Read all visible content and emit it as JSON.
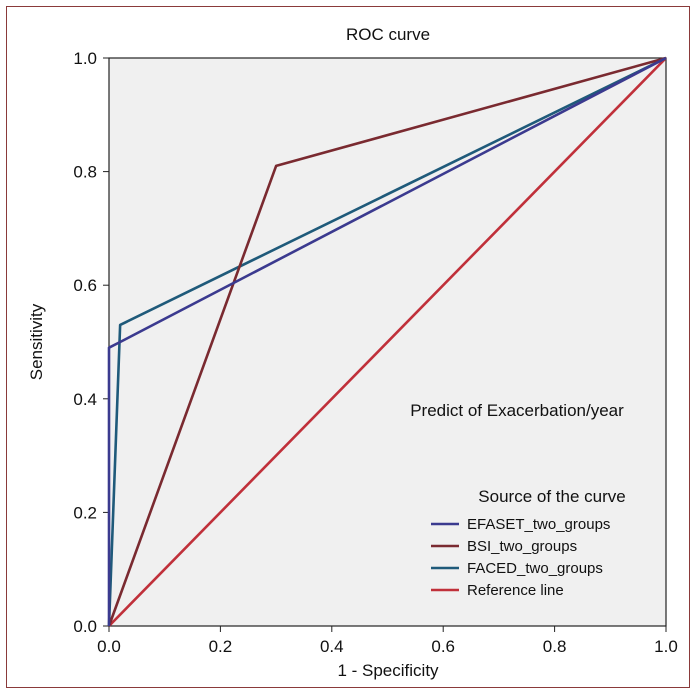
{
  "chart_data": {
    "type": "line",
    "title": "ROC curve",
    "xlabel": "1 - Specificity",
    "ylabel": "Sensitivity",
    "xlim": [
      0,
      1
    ],
    "ylim": [
      0,
      1
    ],
    "xticks": [
      "0.0",
      "0.2",
      "0.4",
      "0.6",
      "0.8",
      "1.0"
    ],
    "yticks": [
      "0.0",
      "0.2",
      "0.4",
      "0.6",
      "0.8",
      "1.0"
    ],
    "annotation": "Predict of Exacerbation/year",
    "legend_title": "Source of the curve",
    "legend_position": "bottom-right",
    "grid": false,
    "plot_background": "#f0f0f0",
    "series": [
      {
        "name": "EFASET_two_groups",
        "color": "#3b3a8f",
        "points": [
          [
            0,
            0
          ],
          [
            0,
            0.49
          ],
          [
            0.02,
            0.5
          ],
          [
            1,
            1
          ]
        ]
      },
      {
        "name": "BSI_two_groups",
        "color": "#7a2a30",
        "points": [
          [
            0,
            0
          ],
          [
            0.3,
            0.81
          ],
          [
            1,
            1
          ]
        ]
      },
      {
        "name": "FACED_two_groups",
        "color": "#1f5a7a",
        "points": [
          [
            0,
            0
          ],
          [
            0.02,
            0.53
          ],
          [
            1,
            1
          ]
        ]
      },
      {
        "name": "Reference line",
        "color": "#c0303a",
        "points": [
          [
            0,
            0
          ],
          [
            1,
            1
          ]
        ]
      }
    ]
  }
}
